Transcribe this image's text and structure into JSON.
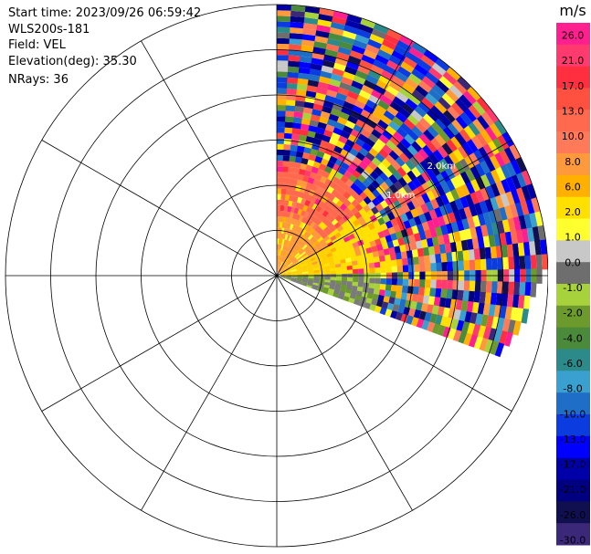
{
  "info": {
    "start_time": "Start time: 2023/09/26 06:59:42",
    "instrument": "WLS200s-181",
    "field": "Field: VEL",
    "elevation": "Elevation(deg): 35.30",
    "nrays": "NRays: 36"
  },
  "chart_data": {
    "type": "heatmap",
    "projection": "polar",
    "field": "VEL",
    "nrays": 36,
    "azimuth_coverage_deg": [
      0,
      110
    ],
    "range_rings": 6,
    "spoke_step_deg": 30,
    "range_annotations": [
      "1.0km",
      "2.0km"
    ],
    "colorbar": {
      "unit": "m/s",
      "ticks": [
        "26.0",
        "21.0",
        "17.0",
        "13.0",
        "10.0",
        "8.0",
        "6.0",
        "2.0",
        "1.0",
        "0.0",
        "-1.0",
        "-2.0",
        "-4.0",
        "-6.0",
        "-8.0",
        "-10.0",
        "-13.0",
        "-17.0",
        "-21.0",
        "-26.0",
        "-30.0"
      ],
      "colors": [
        "#ff1f8f",
        "#ff3a6e",
        "#ff2f3f",
        "#ff5040",
        "#ff6a4e",
        "#ff7a58",
        "#ff9a3c",
        "#ffb000",
        "#ffe000",
        "#ffff30",
        "#c8c8c8",
        "#6e6e6e",
        "#a8d23c",
        "#6c9a2c",
        "#4a8a3a",
        "#2c8a8a",
        "#3aa0d0",
        "#1e6ec8",
        "#0a3ce0",
        "#0000ff",
        "#0000a8",
        "#000080",
        "#101050",
        "#3c2878"
      ]
    }
  }
}
